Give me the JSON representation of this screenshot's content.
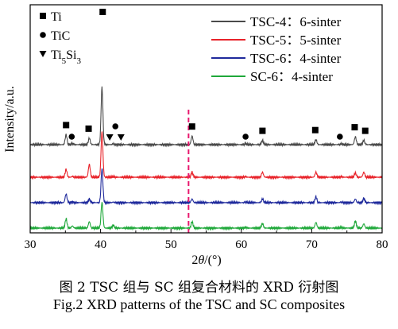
{
  "caption": {
    "cn": "图 2  TSC 组与 SC 组复合材料的 XRD 衍射图",
    "en": "Fig.2  XRD patterns of the TSC and SC composites"
  },
  "chart_data": {
    "type": "line",
    "xlabel": "2θ/(°)",
    "ylabel": "Intensity/a.u.",
    "xlim": [
      30,
      80
    ],
    "xticks": [
      30,
      40,
      50,
      60,
      70,
      80
    ],
    "y_ticks_shown": false,
    "grid": false,
    "dashed_marker_x": 52.5,
    "dashed_marker_color": "#e8176e",
    "phase_legend": [
      {
        "symbol": "square",
        "label": "Ti"
      },
      {
        "symbol": "circle",
        "label": "TiC"
      },
      {
        "symbol": "triangle-down",
        "label": "Ti",
        "sub1": "5",
        "mid": "Si",
        "sub2": "3"
      }
    ],
    "series_legend_position": "top-right",
    "series": [
      {
        "name": "TSC-4：6-sinter",
        "color": "#4a4a4a",
        "offset": 3
      },
      {
        "name": "TSC-5：5-sinter",
        "color": "#e8232a",
        "offset": 2
      },
      {
        "name": "TSC-6：4-sinter",
        "color": "#1f2a9c",
        "offset": 1
      },
      {
        "name": "SC-6：4-sinter",
        "color": "#1fa83a",
        "offset": 0
      }
    ],
    "peaks": [
      {
        "x": 35.1,
        "h": [
          0.7,
          0.55,
          0.6,
          0.65
        ]
      },
      {
        "x": 36.0,
        "h": [
          0.08,
          0.05,
          0.05,
          0.14
        ]
      },
      {
        "x": 38.4,
        "h": [
          0.45,
          0.9,
          0.25,
          0.45
        ]
      },
      {
        "x": 40.2,
        "h": [
          4.0,
          3.2,
          2.4,
          1.8
        ]
      },
      {
        "x": 41.8,
        "h": [
          0.06,
          0.04,
          0.04,
          0.2
        ]
      },
      {
        "x": 53.0,
        "h": [
          0.6,
          0.35,
          0.25,
          0.45
        ]
      },
      {
        "x": 60.6,
        "h": [
          0.06,
          0.04,
          0.04,
          0.05
        ]
      },
      {
        "x": 63.0,
        "h": [
          0.3,
          0.35,
          0.25,
          0.32
        ]
      },
      {
        "x": 70.6,
        "h": [
          0.35,
          0.35,
          0.4,
          0.4
        ]
      },
      {
        "x": 74.2,
        "h": [
          0.05,
          0.04,
          0.04,
          0.04
        ]
      },
      {
        "x": 76.2,
        "h": [
          0.55,
          0.3,
          0.25,
          0.5
        ]
      },
      {
        "x": 77.4,
        "h": [
          0.3,
          0.35,
          0.3,
          0.3
        ]
      }
    ],
    "peak_markers": [
      {
        "symbol": "square",
        "x": 35.1
      },
      {
        "symbol": "circle",
        "x": 35.9
      },
      {
        "symbol": "square",
        "x": 38.3
      },
      {
        "symbol": "square",
        "x": 40.3
      },
      {
        "symbol": "triangle-down",
        "x": 41.3
      },
      {
        "symbol": "circle",
        "x": 42.1
      },
      {
        "symbol": "triangle-down",
        "x": 42.9
      },
      {
        "symbol": "square",
        "x": 53.0
      },
      {
        "symbol": "circle",
        "x": 60.6
      },
      {
        "symbol": "square",
        "x": 63.0
      },
      {
        "symbol": "square",
        "x": 70.5
      },
      {
        "symbol": "circle",
        "x": 74.0
      },
      {
        "symbol": "square",
        "x": 76.1
      },
      {
        "symbol": "square",
        "x": 77.6
      }
    ]
  }
}
